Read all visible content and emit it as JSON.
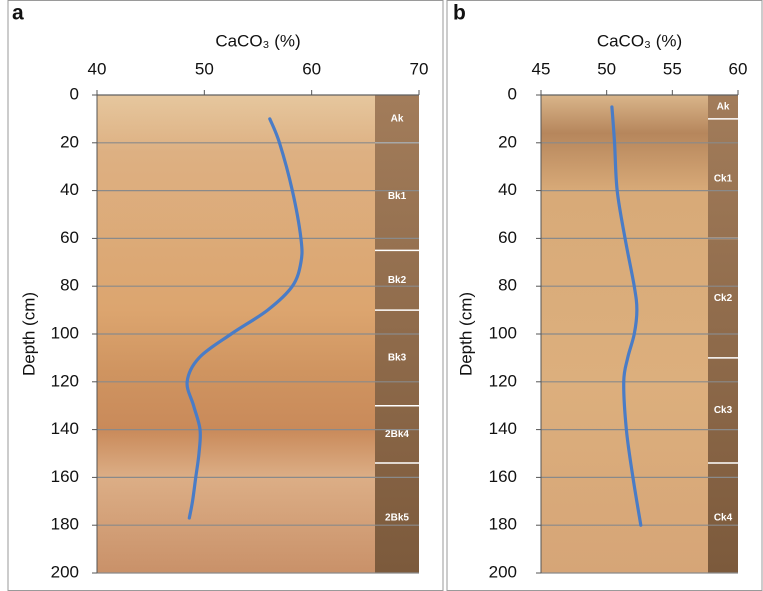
{
  "chart_data": [
    {
      "type": "line",
      "panel": "a",
      "title": "CaCO₃ (%)",
      "ylabel": "Depth (cm)",
      "xlim": [
        40,
        70
      ],
      "xticks": [
        40,
        50,
        60,
        70
      ],
      "ylim": [
        0,
        200
      ],
      "yticks": [
        0,
        20,
        40,
        60,
        80,
        100,
        120,
        140,
        160,
        180,
        200
      ],
      "y_inverted": true,
      "grid": true,
      "color": "#4a7cc6",
      "x": [
        56.1,
        57,
        58.2,
        59,
        59,
        58.2,
        55.9,
        52.5,
        49.5,
        48.4,
        49,
        49.6,
        49.5,
        49.2,
        48.9,
        48.6
      ],
      "values": [
        10,
        20,
        40,
        60,
        70,
        80,
        90,
        100,
        110,
        120,
        130,
        140,
        150,
        160,
        170,
        177
      ],
      "horizons": [
        {
          "name": "Ak",
          "top": 0,
          "bottom": 20
        },
        {
          "name": "Bk1",
          "top": 20,
          "bottom": 65
        },
        {
          "name": "Bk2",
          "top": 65,
          "bottom": 90
        },
        {
          "name": "Bk3",
          "top": 90,
          "bottom": 130
        },
        {
          "name": "2Bk4",
          "top": 130,
          "bottom": 154
        },
        {
          "name": "2Bk5",
          "top": 154,
          "bottom": 200
        }
      ]
    },
    {
      "type": "line",
      "panel": "b",
      "title": "CaCO₃ (%)",
      "ylabel": "Depth (cm)",
      "xlim": [
        45,
        60
      ],
      "xticks": [
        45,
        50,
        55,
        60
      ],
      "ylim": [
        0,
        200
      ],
      "yticks": [
        0,
        20,
        40,
        60,
        80,
        100,
        120,
        140,
        160,
        180,
        200
      ],
      "y_inverted": true,
      "grid": true,
      "color": "#4a7cc6",
      "x": [
        50.4,
        50.6,
        50.8,
        51.4,
        52.1,
        52.3,
        52.1,
        51.6,
        51.3,
        51.5,
        52,
        52.6
      ],
      "values": [
        5,
        20,
        40,
        60,
        80,
        90,
        100,
        110,
        120,
        140,
        160,
        180
      ],
      "horizons": [
        {
          "name": "Ak",
          "top": 0,
          "bottom": 10
        },
        {
          "name": "Ck1",
          "top": 10,
          "bottom": 60
        },
        {
          "name": "Ck2",
          "top": 60,
          "bottom": 110
        },
        {
          "name": "Ck3",
          "top": 110,
          "bottom": 154
        },
        {
          "name": "Ck4",
          "top": 154,
          "bottom": 200
        }
      ]
    }
  ]
}
